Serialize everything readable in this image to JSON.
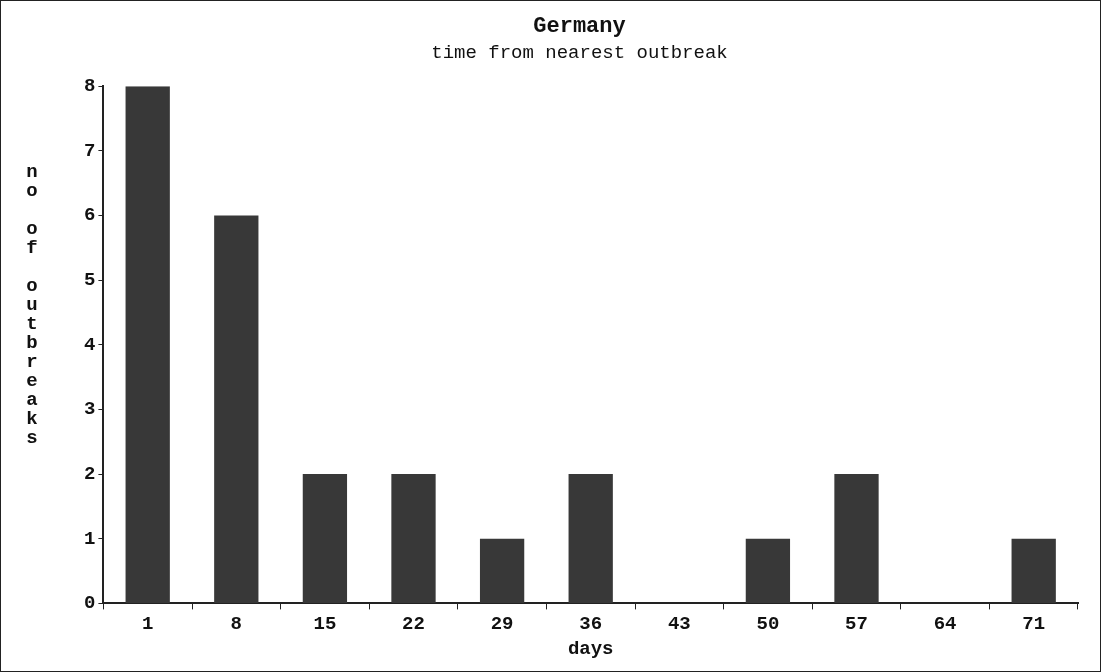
{
  "chart_data": {
    "type": "bar",
    "title": "Germany",
    "subtitle": "time from nearest outbreak",
    "xlabel": "days",
    "ylabel": "no of outbreaks",
    "categories": [
      "1",
      "8",
      "15",
      "22",
      "29",
      "36",
      "43",
      "50",
      "57",
      "64",
      "71"
    ],
    "values": [
      8,
      6,
      2,
      2,
      1,
      2,
      0,
      1,
      2,
      0,
      1
    ],
    "color": "#383838",
    "ylim": [
      0,
      8
    ],
    "yticks": [
      0,
      1,
      2,
      3,
      4,
      5,
      6,
      7,
      8
    ]
  }
}
